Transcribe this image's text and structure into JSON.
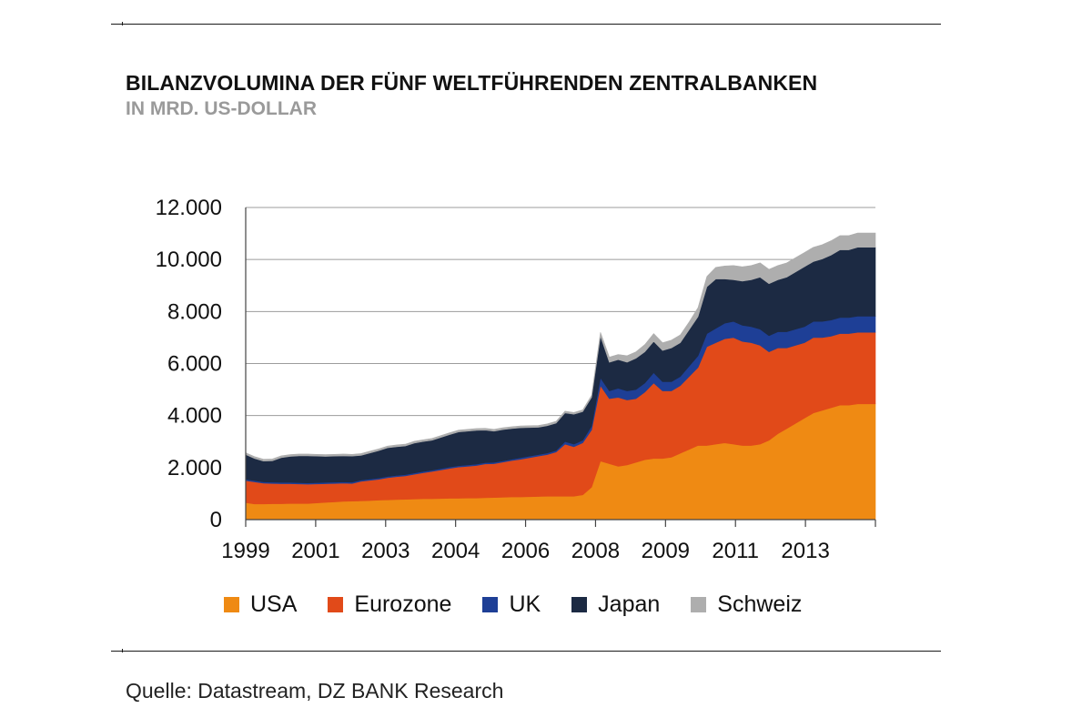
{
  "header": {
    "title": "BILANZVOLUMINA DER FÜNF WELTFÜHRENDEN ZENTRALBANKEN",
    "subtitle": "IN MRD. US-DOLLAR"
  },
  "footer": {
    "source": "Quelle: Datastream, DZ BANK Research"
  },
  "chart_data": {
    "type": "area",
    "stacked": true,
    "title": "BILANZVOLUMINA DER FÜNF WELTFÜHRENDEN ZENTRALBANKEN",
    "subtitle": "IN MRD. US-DOLLAR",
    "xlabel": "",
    "ylabel": "",
    "ylim": [
      0,
      12000
    ],
    "yticks": [
      0,
      2000,
      4000,
      6000,
      8000,
      10000,
      12000
    ],
    "ytick_labels": [
      "0",
      "2.000",
      "4.000",
      "6.000",
      "8.000",
      "10.000",
      "12.000"
    ],
    "xtick_labels": [
      "1999",
      "2001",
      "2003",
      "2004",
      "2006",
      "2008",
      "2009",
      "2011",
      "2013"
    ],
    "grid": "horizontal",
    "legend_position": "bottom",
    "x": [
      0,
      1,
      2,
      3,
      4,
      5,
      6,
      7,
      8,
      9,
      10,
      11,
      12,
      13,
      14,
      15,
      16,
      17,
      18,
      19,
      20,
      21,
      22,
      23,
      24,
      25,
      26,
      27,
      28,
      29,
      30,
      31,
      32,
      33,
      34,
      35,
      36,
      37,
      38,
      39,
      40,
      41,
      42,
      43,
      44,
      45,
      46,
      47,
      48,
      49,
      50,
      51,
      52,
      53,
      54,
      55,
      56,
      57,
      58,
      59,
      60,
      61,
      62,
      63,
      64,
      65,
      66,
      67,
      68,
      69,
      70,
      71
    ],
    "series": [
      {
        "name": "USA",
        "color": "#EF8A13",
        "values": [
          650,
          600,
          600,
          610,
          610,
          620,
          620,
          620,
          640,
          660,
          680,
          700,
          710,
          720,
          730,
          750,
          760,
          770,
          780,
          790,
          800,
          800,
          810,
          820,
          820,
          830,
          830,
          840,
          850,
          860,
          870,
          870,
          880,
          890,
          900,
          900,
          900,
          900,
          950,
          1250,
          2250,
          2150,
          2050,
          2100,
          2200,
          2300,
          2350,
          2350,
          2400,
          2550,
          2700,
          2850,
          2850,
          2900,
          2950,
          2900,
          2850,
          2850,
          2900,
          3050,
          3300,
          3500,
          3700,
          3900,
          4100,
          4200,
          4300,
          4400,
          4400,
          4450,
          4450,
          4450
        ]
      },
      {
        "name": "Eurozone",
        "color": "#E14A19",
        "values": [
          850,
          850,
          800,
          780,
          770,
          760,
          750,
          740,
          730,
          720,
          710,
          700,
          680,
          750,
          780,
          800,
          850,
          880,
          900,
          950,
          1000,
          1050,
          1100,
          1150,
          1200,
          1220,
          1250,
          1300,
          1300,
          1350,
          1400,
          1450,
          1500,
          1550,
          1600,
          1700,
          2000,
          1900,
          2000,
          2200,
          2900,
          2500,
          2650,
          2500,
          2450,
          2600,
          2900,
          2600,
          2550,
          2600,
          2800,
          3000,
          3800,
          3900,
          4000,
          4100,
          4000,
          3950,
          3800,
          3400,
          3300,
          3100,
          3000,
          2900,
          2900,
          2800,
          2750,
          2750,
          2750,
          2750,
          2750,
          2750
        ]
      },
      {
        "name": "UK",
        "color": "#1E3F96",
        "values": [
          50,
          50,
          50,
          50,
          50,
          50,
          50,
          50,
          50,
          50,
          50,
          50,
          50,
          50,
          50,
          50,
          50,
          50,
          50,
          50,
          50,
          50,
          50,
          50,
          50,
          50,
          50,
          50,
          50,
          50,
          50,
          60,
          60,
          60,
          60,
          60,
          100,
          100,
          100,
          150,
          300,
          300,
          350,
          350,
          350,
          350,
          400,
          350,
          350,
          350,
          400,
          450,
          500,
          550,
          600,
          620,
          620,
          620,
          620,
          620,
          620,
          620,
          620,
          620,
          620,
          620,
          620,
          620,
          620,
          620,
          620,
          620
        ]
      },
      {
        "name": "Japan",
        "color": "#1C2A43",
        "values": [
          950,
          850,
          800,
          820,
          950,
          1000,
          1030,
          1040,
          1020,
          1000,
          1000,
          1000,
          1000,
          950,
          1000,
          1050,
          1100,
          1100,
          1100,
          1150,
          1150,
          1150,
          1200,
          1250,
          1300,
          1300,
          1300,
          1250,
          1200,
          1200,
          1180,
          1150,
          1100,
          1050,
          1050,
          1050,
          1100,
          1150,
          1100,
          1100,
          1600,
          1100,
          1100,
          1100,
          1200,
          1200,
          1200,
          1200,
          1300,
          1300,
          1400,
          1500,
          1800,
          1900,
          1700,
          1600,
          1700,
          1800,
          2000,
          2000,
          2000,
          2100,
          2200,
          2300,
          2300,
          2400,
          2500,
          2600,
          2600,
          2650,
          2650,
          2650
        ]
      },
      {
        "name": "Schweiz",
        "color": "#AEAEAE",
        "values": [
          70,
          70,
          70,
          70,
          70,
          70,
          70,
          70,
          70,
          70,
          70,
          70,
          70,
          70,
          70,
          70,
          70,
          70,
          70,
          70,
          70,
          70,
          70,
          70,
          70,
          70,
          70,
          70,
          70,
          70,
          70,
          70,
          70,
          70,
          70,
          70,
          70,
          70,
          70,
          80,
          150,
          200,
          200,
          250,
          250,
          280,
          300,
          300,
          300,
          300,
          300,
          350,
          400,
          450,
          500,
          550,
          550,
          550,
          550,
          550,
          550,
          550,
          550,
          550,
          550,
          550,
          550,
          550,
          550,
          550,
          550,
          550
        ]
      }
    ]
  }
}
